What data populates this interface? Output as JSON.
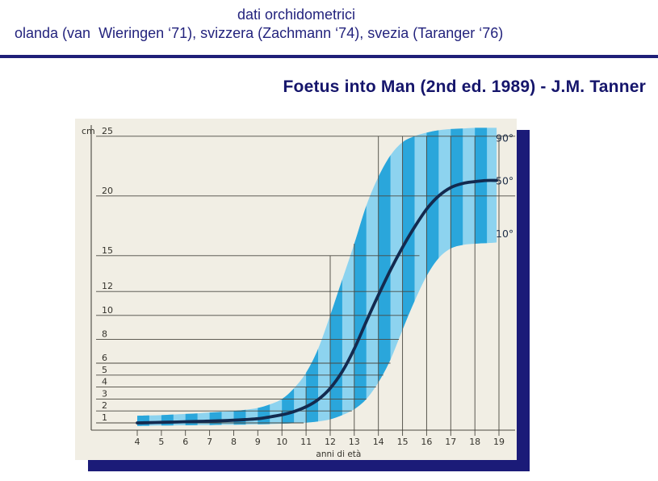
{
  "header": {
    "line1": "dati orchidometrici",
    "line2": "olanda (van  Wieringen ‘71), svizzera (Zachmann ‘74), svezia (Taranger ‘76)",
    "title": "Foetus into Man (2nd ed. 1989) - J.M. Tanner",
    "text_color": "#23237d",
    "rule_color": "#1f1f78"
  },
  "chart_data": {
    "type": "area",
    "description": "Testicular growth percentile chart (orchidometric data), striped percentile band 10°-90° with median curve, ages 4-19",
    "title": "",
    "xlabel": "anni di età",
    "ylabel": "cm",
    "x_ticks": [
      4,
      5,
      6,
      7,
      8,
      9,
      10,
      11,
      12,
      13,
      14,
      15,
      16,
      17,
      18,
      19
    ],
    "y_ticks": [
      1,
      2,
      3,
      4,
      5,
      6,
      8,
      10,
      12,
      15,
      20,
      25
    ],
    "xlim": [
      4,
      19.7
    ],
    "ylim": [
      0.4,
      26.8
    ],
    "grid": true,
    "legend_position": "right-edge percentile labels",
    "percentile_labels": [
      {
        "text": "90°",
        "anchor_v": 24.55
      },
      {
        "text": "50°",
        "anchor_v": 20.95
      },
      {
        "text": "10°",
        "anchor_v": 16.55
      }
    ],
    "x": [
      4,
      4.5,
      5,
      5.5,
      6,
      6.5,
      7,
      7.5,
      8,
      8.5,
      9,
      9.5,
      10,
      10.5,
      11,
      11.5,
      12,
      12.5,
      13,
      13.5,
      14,
      14.5,
      15,
      15.5,
      16,
      16.5,
      17,
      17.5,
      18,
      18.5,
      18.9
    ],
    "series": [
      {
        "name": "90° percentile (band top)",
        "values": [
          1.6,
          1.63,
          1.65,
          1.7,
          1.75,
          1.8,
          1.87,
          1.93,
          2.0,
          2.1,
          2.25,
          2.55,
          3.0,
          3.9,
          5.2,
          7.2,
          10.0,
          13.0,
          16.0,
          19.2,
          21.6,
          23.4,
          24.5,
          25.0,
          25.3,
          25.5,
          25.6,
          25.65,
          25.7,
          25.7,
          25.7
        ]
      },
      {
        "name": "50° percentile (median curve)",
        "values": [
          1.0,
          1.02,
          1.05,
          1.07,
          1.1,
          1.12,
          1.15,
          1.18,
          1.22,
          1.28,
          1.35,
          1.5,
          1.68,
          1.95,
          2.35,
          2.95,
          3.9,
          5.3,
          7.2,
          9.5,
          11.7,
          13.8,
          15.7,
          17.4,
          18.9,
          20.0,
          20.7,
          21.05,
          21.2,
          21.3,
          21.3
        ]
      },
      {
        "name": "10° percentile (band bottom)",
        "values": [
          0.75,
          0.76,
          0.78,
          0.79,
          0.8,
          0.81,
          0.82,
          0.84,
          0.85,
          0.86,
          0.88,
          0.9,
          0.93,
          0.97,
          1.02,
          1.12,
          1.3,
          1.65,
          2.15,
          3.0,
          4.4,
          6.3,
          8.8,
          11.2,
          13.3,
          14.8,
          15.6,
          15.9,
          16.0,
          16.05,
          16.1
        ]
      }
    ],
    "h_gridlines": [
      {
        "v": 25,
        "end_age": 19.67
      },
      {
        "v": 20,
        "end_age": 19.67
      },
      {
        "v": 15,
        "end_age": 15.7
      },
      {
        "v": 12,
        "end_age": 15.5
      },
      {
        "v": 10,
        "end_age": 15.2
      },
      {
        "v": 8,
        "end_age": 14.85
      },
      {
        "v": 6,
        "end_age": 14.5
      },
      {
        "v": 5,
        "end_age": 14.2
      },
      {
        "v": 4,
        "end_age": 13.9
      },
      {
        "v": 3,
        "end_age": 13.5
      },
      {
        "v": 2,
        "end_age": 12.9
      },
      {
        "v": 1,
        "end_age": 10.9
      }
    ],
    "v_gridlines": [
      {
        "age": 10,
        "top_v": 2
      },
      {
        "age": 11,
        "top_v": 4
      },
      {
        "age": 12,
        "top_v": 15
      },
      {
        "age": 13,
        "top_v": 16
      },
      {
        "age": 14,
        "top_v": 25
      },
      {
        "age": 15,
        "top_v": 25
      },
      {
        "age": 16,
        "top_v": 25
      },
      {
        "age": 17,
        "top_v": 25
      },
      {
        "age": 18,
        "top_v": 25
      },
      {
        "age": 19,
        "top_v": 25
      }
    ],
    "stripes": {
      "start_age": 4,
      "end_age": 18.9,
      "period_years": 1,
      "dark_first_half": true
    },
    "colors": {
      "chart_bg": "#f1eee4",
      "band_light": "#8dd3ef",
      "band_dark": "#2aa6db",
      "curve": "#132a4f",
      "grid": "#4a4840",
      "tick_text": "#35332c",
      "percentile_text": "#1e2e48",
      "shadow": "#1b1b78"
    }
  }
}
